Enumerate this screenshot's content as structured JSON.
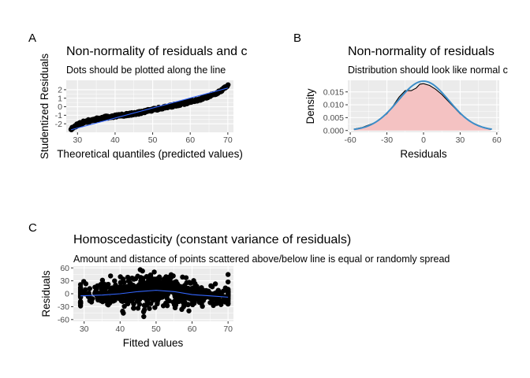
{
  "chart_data": [
    {
      "tag": "A",
      "type": "scatter",
      "title": "Non-normality of residuals and c",
      "subtitle": "Dots should be plotted along the line",
      "xlabel": "Theoretical quantiles (predicted values)",
      "ylabel": "Studentized Residuals",
      "xlim": [
        27,
        71.5
      ],
      "ylim": [
        -3.0,
        3.1
      ],
      "x_ticks": [
        30,
        40,
        50,
        60,
        70
      ],
      "y_ticks": [
        -2,
        -1,
        0,
        1,
        2
      ],
      "y_tick_labels": [
        "-2",
        "-1",
        "0",
        "1",
        "2"
      ],
      "grid": true,
      "point_color": "#000000",
      "line_color": "#3366FF",
      "qq_points": [
        [
          28.3,
          -2.6
        ],
        [
          30,
          -2.1
        ],
        [
          32,
          -1.75
        ],
        [
          35,
          -1.45
        ],
        [
          38,
          -1.2
        ],
        [
          42,
          -1.0
        ],
        [
          46,
          -0.75
        ],
        [
          50,
          -0.35
        ],
        [
          54,
          0.0
        ],
        [
          58,
          0.35
        ],
        [
          62,
          0.8
        ],
        [
          66,
          1.4
        ],
        [
          68,
          1.8
        ],
        [
          70,
          2.5
        ]
      ],
      "reference_line": [
        [
          28.3,
          -2.7
        ],
        [
          70,
          2.2
        ]
      ]
    },
    {
      "tag": "B",
      "type": "area",
      "title": "Non-normality of residuals",
      "subtitle": "Distribution should look like normal c",
      "xlabel": "Residuals",
      "ylabel": "Density",
      "xlim": [
        -62,
        62
      ],
      "ylim": [
        -0.0007,
        0.0195
      ],
      "x_ticks": [
        -60,
        -30,
        0,
        30,
        60
      ],
      "y_ticks": [
        0.0,
        0.005,
        0.01,
        0.015
      ],
      "y_tick_labels": [
        "0.000",
        "0.005",
        "0.010",
        "0.015"
      ],
      "grid": true,
      "fill_color": "#F4C2C2",
      "density_line_color": "#000000",
      "normal_line_color": "#3C8DC8",
      "density_curve": [
        [
          -57,
          0.0005
        ],
        [
          -50,
          0.0012
        ],
        [
          -40,
          0.003
        ],
        [
          -30,
          0.0065
        ],
        [
          -25,
          0.0095
        ],
        [
          -20,
          0.013
        ],
        [
          -15,
          0.0155
        ],
        [
          -10,
          0.0155
        ],
        [
          -6,
          0.0165
        ],
        [
          -3,
          0.018
        ],
        [
          0,
          0.0182
        ],
        [
          5,
          0.0175
        ],
        [
          10,
          0.016
        ],
        [
          15,
          0.014
        ],
        [
          20,
          0.0115
        ],
        [
          25,
          0.009
        ],
        [
          30,
          0.0065
        ],
        [
          40,
          0.003
        ],
        [
          50,
          0.001
        ],
        [
          55,
          0.0004
        ]
      ],
      "normal_curve": {
        "mean": 0,
        "sd": 20.8,
        "from": -57,
        "to": 56
      }
    },
    {
      "tag": "C",
      "type": "scatter",
      "title": "Homoscedasticity (constant variance of residuals)",
      "subtitle": "Amount and distance of points scattered above/below line is equal or randomly spread",
      "xlabel": "Fitted values",
      "ylabel": "Residuals",
      "xlim": [
        27,
        71.5
      ],
      "ylim": [
        -64,
        64
      ],
      "x_ticks": [
        30,
        40,
        50,
        60,
        70
      ],
      "y_ticks": [
        -60,
        -30,
        0,
        30,
        60
      ],
      "y_tick_labels": [
        "-60",
        "-30",
        "0",
        "30",
        "60"
      ],
      "grid": true,
      "point_color": "#000000",
      "line_color": "#3366FF",
      "smooth_line": [
        [
          29,
          -5
        ],
        [
          35,
          -3
        ],
        [
          40,
          0
        ],
        [
          45,
          5
        ],
        [
          50,
          8
        ],
        [
          55,
          5
        ],
        [
          60,
          -2
        ],
        [
          65,
          -5
        ],
        [
          70,
          -8
        ]
      ]
    }
  ]
}
